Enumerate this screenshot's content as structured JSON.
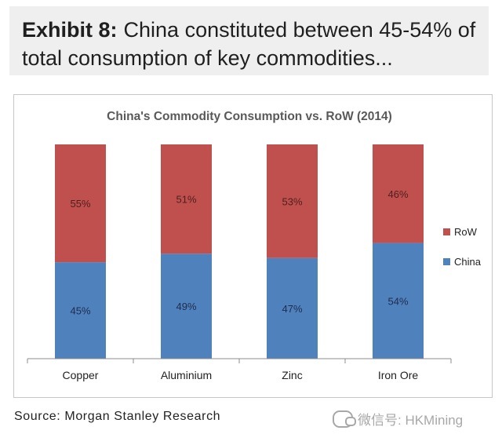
{
  "header": {
    "label": "Exhibit 8:",
    "text": "China constituted between 45-54% of total consumption of key commodities..."
  },
  "source": "Source: Morgan Stanley Research",
  "watermark": "微信号: HKMining",
  "chart_data": {
    "type": "bar",
    "stacked": true,
    "title": "China's Commodity Consumption vs. RoW (2014)",
    "categories": [
      "Copper",
      "Aluminium",
      "Zinc",
      "Iron Ore"
    ],
    "series": [
      {
        "name": "China",
        "values": [
          45,
          49,
          47,
          54
        ],
        "labels": [
          "45%",
          "49%",
          "47%",
          "54%"
        ],
        "color": "#4f81bd"
      },
      {
        "name": "RoW",
        "values": [
          55,
          51,
          53,
          46
        ],
        "labels": [
          "55%",
          "51%",
          "53%",
          "46%"
        ],
        "color": "#c0504d"
      }
    ],
    "ylim": [
      0,
      100
    ],
    "legend": "right",
    "legend_order": [
      "RoW",
      "China"
    ],
    "grid": false
  }
}
